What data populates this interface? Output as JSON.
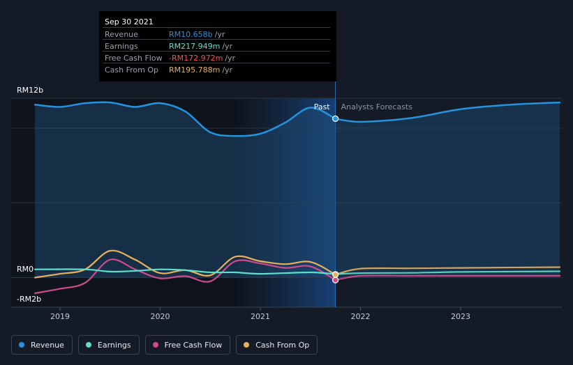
{
  "chart_data": {
    "type": "line",
    "x_axis": {
      "tick_labels": [
        "2019",
        "2020",
        "2021",
        "2022",
        "2023"
      ],
      "range": [
        2018.75,
        2023.99
      ]
    },
    "y_axis": {
      "tick_labels": [
        "RM12b",
        "RM0",
        "-RM2b"
      ],
      "range": [
        -2,
        12
      ],
      "unit": "RM billions"
    },
    "divider": {
      "x": 2021.75,
      "past_label": "Past",
      "forecast_label": "Analysts Forecasts"
    },
    "series": [
      {
        "name": "Revenue",
        "color": "#2394df",
        "filled": true,
        "points": [
          [
            2018.75,
            11.6
          ],
          [
            2019.0,
            11.45
          ],
          [
            2019.25,
            11.7
          ],
          [
            2019.5,
            11.75
          ],
          [
            2019.75,
            11.45
          ],
          [
            2020.0,
            11.7
          ],
          [
            2020.25,
            11.15
          ],
          [
            2020.5,
            9.75
          ],
          [
            2020.75,
            9.5
          ],
          [
            2021.0,
            9.65
          ],
          [
            2021.25,
            10.4
          ],
          [
            2021.5,
            11.4
          ],
          [
            2021.75,
            10.66
          ]
        ],
        "forecast": [
          [
            2021.75,
            10.66
          ],
          [
            2022.0,
            10.45
          ],
          [
            2022.5,
            10.7
          ],
          [
            2023.0,
            11.3
          ],
          [
            2023.5,
            11.6
          ],
          [
            2023.99,
            11.75
          ]
        ]
      },
      {
        "name": "Earnings",
        "color": "#5ce0c9",
        "points": [
          [
            2018.75,
            0.55
          ],
          [
            2019.25,
            0.55
          ],
          [
            2019.5,
            0.4
          ],
          [
            2019.75,
            0.45
          ],
          [
            2020.0,
            0.55
          ],
          [
            2020.25,
            0.5
          ],
          [
            2020.5,
            0.35
          ],
          [
            2020.75,
            0.35
          ],
          [
            2021.0,
            0.25
          ],
          [
            2021.5,
            0.35
          ],
          [
            2021.75,
            0.22
          ]
        ],
        "forecast": [
          [
            2021.75,
            0.22
          ],
          [
            2022.0,
            0.3
          ],
          [
            2022.5,
            0.32
          ],
          [
            2023.0,
            0.38
          ],
          [
            2023.99,
            0.42
          ]
        ]
      },
      {
        "name": "Free Cash Flow",
        "color": "#d14b8b",
        "points": [
          [
            2018.75,
            -1.05
          ],
          [
            2019.0,
            -0.75
          ],
          [
            2019.25,
            -0.35
          ],
          [
            2019.5,
            1.2
          ],
          [
            2019.75,
            0.55
          ],
          [
            2020.0,
            -0.05
          ],
          [
            2020.25,
            0.1
          ],
          [
            2020.5,
            -0.25
          ],
          [
            2020.75,
            1.1
          ],
          [
            2021.0,
            0.95
          ],
          [
            2021.25,
            0.65
          ],
          [
            2021.5,
            0.75
          ],
          [
            2021.75,
            -0.17
          ]
        ],
        "forecast": [
          [
            2021.75,
            -0.17
          ],
          [
            2022.0,
            0.12
          ],
          [
            2022.5,
            0.12
          ],
          [
            2023.0,
            0.12
          ],
          [
            2023.99,
            0.12
          ]
        ]
      },
      {
        "name": "Cash From Op",
        "color": "#e8b15e",
        "points": [
          [
            2018.75,
            0.0
          ],
          [
            2019.0,
            0.25
          ],
          [
            2019.25,
            0.55
          ],
          [
            2019.5,
            1.8
          ],
          [
            2019.75,
            1.2
          ],
          [
            2020.0,
            0.3
          ],
          [
            2020.25,
            0.5
          ],
          [
            2020.5,
            0.15
          ],
          [
            2020.75,
            1.4
          ],
          [
            2021.0,
            1.1
          ],
          [
            2021.25,
            0.9
          ],
          [
            2021.5,
            1.05
          ],
          [
            2021.75,
            0.2
          ]
        ],
        "forecast": [
          [
            2021.75,
            0.2
          ],
          [
            2022.0,
            0.6
          ],
          [
            2022.5,
            0.62
          ],
          [
            2023.0,
            0.65
          ],
          [
            2023.99,
            0.7
          ]
        ]
      }
    ]
  },
  "tooltip": {
    "date": "Sep 30 2021",
    "rows": [
      {
        "label": "Revenue",
        "value": "RM10.658b",
        "unit": "/yr",
        "color": "#2394df"
      },
      {
        "label": "Earnings",
        "value": "RM217.949m",
        "unit": "/yr",
        "color": "#5ce0c9"
      },
      {
        "label": "Free Cash Flow",
        "value": "-RM172.972m",
        "unit": "/yr",
        "color": "#ff4d4d"
      },
      {
        "label": "Cash From Op",
        "value": "RM195.788m",
        "unit": "/yr",
        "color": "#e8b15e"
      }
    ]
  },
  "legend": [
    {
      "label": "Revenue",
      "color": "#2394df"
    },
    {
      "label": "Earnings",
      "color": "#5ce0c9"
    },
    {
      "label": "Free Cash Flow",
      "color": "#d14b8b"
    },
    {
      "label": "Cash From Op",
      "color": "#e8b15e"
    }
  ]
}
